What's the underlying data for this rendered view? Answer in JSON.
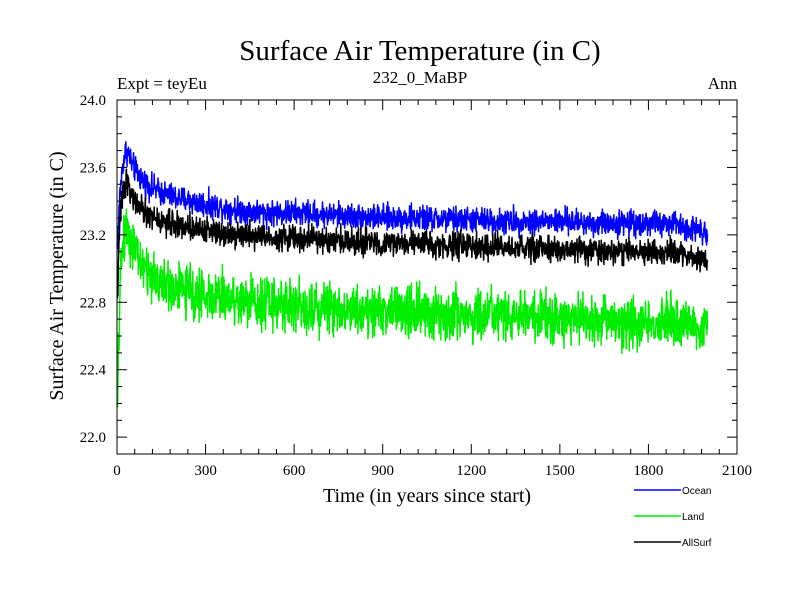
{
  "chart_data": {
    "type": "line",
    "title": "Surface Air Temperature (in C)",
    "subtitle": "232_0_MaBP",
    "left_label": "Expt = teyEu",
    "right_label": "Ann",
    "xlabel": "Time (in years since start)",
    "ylabel": "Surface Air Temperature (in C)",
    "xlim": [
      0,
      2100
    ],
    "ylim": [
      21.9,
      24.0
    ],
    "xticks": [
      0,
      300,
      600,
      900,
      1200,
      1500,
      1800,
      2100
    ],
    "xtick_labels": [
      "0",
      "300",
      "600",
      "900",
      "1200",
      "1500",
      "1800",
      "2100"
    ],
    "yticks": [
      22.0,
      22.4,
      22.8,
      23.2,
      23.6,
      24.0
    ],
    "ytick_labels": [
      "22.0",
      "22.4",
      "22.8",
      "23.2",
      "23.6",
      "24.0"
    ],
    "legend_position": "bottom-right",
    "series": [
      {
        "name": "Ocean",
        "color": "#0000ff",
        "x": [
          1,
          10,
          20,
          30,
          40,
          50,
          75,
          100,
          150,
          200,
          300,
          400,
          500,
          600,
          700,
          800,
          900,
          1000,
          1100,
          1200,
          1300,
          1400,
          1500,
          1600,
          1700,
          1800,
          1900,
          2000
        ],
        "values": [
          23.1,
          23.45,
          23.62,
          23.7,
          23.68,
          23.62,
          23.55,
          23.5,
          23.45,
          23.42,
          23.38,
          23.35,
          23.33,
          23.33,
          23.32,
          23.31,
          23.3,
          23.3,
          23.29,
          23.29,
          23.28,
          23.28,
          23.28,
          23.27,
          23.27,
          23.27,
          23.26,
          23.22
        ],
        "noise_amplitude": 0.07
      },
      {
        "name": "Land",
        "color": "#00ee00",
        "x": [
          1,
          10,
          20,
          30,
          40,
          50,
          75,
          100,
          150,
          200,
          300,
          400,
          500,
          600,
          700,
          800,
          900,
          1000,
          1100,
          1200,
          1300,
          1400,
          1500,
          1600,
          1700,
          1800,
          1900,
          2000
        ],
        "values": [
          22.1,
          22.9,
          23.15,
          23.25,
          23.22,
          23.15,
          23.05,
          22.98,
          22.92,
          22.88,
          22.84,
          22.82,
          22.8,
          22.78,
          22.77,
          22.76,
          22.75,
          22.74,
          22.73,
          22.72,
          22.72,
          22.71,
          22.7,
          22.7,
          22.69,
          22.68,
          22.68,
          22.66
        ],
        "noise_amplitude": 0.14
      },
      {
        "name": "AllSurf",
        "color": "#000000",
        "x": [
          1,
          10,
          20,
          30,
          40,
          50,
          75,
          100,
          150,
          200,
          300,
          400,
          500,
          600,
          700,
          800,
          900,
          1000,
          1100,
          1200,
          1300,
          1400,
          1500,
          1600,
          1700,
          1800,
          1900,
          2000
        ],
        "values": [
          22.8,
          23.3,
          23.45,
          23.52,
          23.5,
          23.43,
          23.36,
          23.32,
          23.28,
          23.26,
          23.23,
          23.21,
          23.19,
          23.18,
          23.17,
          23.16,
          23.15,
          23.15,
          23.14,
          23.13,
          23.12,
          23.12,
          23.11,
          23.11,
          23.1,
          23.1,
          23.09,
          23.05
        ],
        "noise_amplitude": 0.07
      }
    ]
  }
}
